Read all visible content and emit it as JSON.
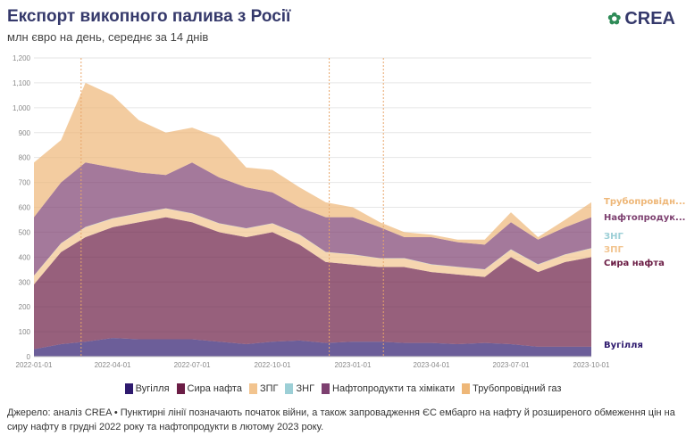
{
  "header": {
    "title": "Експорт викопного палива з Росії",
    "subtitle": "млн євро на день, середнє за 14 днів",
    "logo": "CREA"
  },
  "chart_data": {
    "type": "area",
    "stacked": true,
    "title": "Експорт викопного палива з Росії",
    "ylabel": "млн євро на день",
    "ylim": [
      0,
      1200
    ],
    "yticks": [
      0,
      100,
      200,
      300,
      400,
      500,
      600,
      700,
      800,
      900,
      1000,
      1100,
      1200
    ],
    "ytick_labels": [
      "0",
      "100",
      "200",
      "300",
      "400",
      "500",
      "600",
      "700",
      "800",
      "900",
      "1,000",
      "1,100",
      "1,200"
    ],
    "xticks": [
      "2022-01-01",
      "2022-04-01",
      "2022-07-01",
      "2022-10-01",
      "2023-01-01",
      "2023-04-01",
      "2023-07-01",
      "2023-10-01"
    ],
    "x": [
      "2022-01-01",
      "2022-02-01",
      "2022-03-01",
      "2022-04-01",
      "2022-05-01",
      "2022-06-01",
      "2022-07-01",
      "2022-08-01",
      "2022-09-01",
      "2022-10-01",
      "2022-11-01",
      "2022-12-01",
      "2023-01-01",
      "2023-02-01",
      "2023-03-01",
      "2023-04-01",
      "2023-05-01",
      "2023-06-01",
      "2023-07-01",
      "2023-08-01",
      "2023-09-01",
      "2023-10-01"
    ],
    "vlines": [
      "2022-02-24",
      "2022-12-05",
      "2023-02-05"
    ],
    "series": [
      {
        "name": "Вугілля",
        "label": "Вугілля",
        "color": "#2e1a6e",
        "values": [
          30,
          50,
          60,
          75,
          70,
          70,
          70,
          60,
          50,
          60,
          65,
          55,
          60,
          60,
          55,
          55,
          50,
          55,
          50,
          40,
          40,
          40
        ]
      },
      {
        "name": "Сира нафта",
        "label": "Сира нафта",
        "color": "#6b1d45",
        "values": [
          260,
          370,
          420,
          445,
          470,
          490,
          470,
          440,
          430,
          440,
          385,
          325,
          310,
          300,
          305,
          285,
          280,
          265,
          350,
          300,
          340,
          360
        ]
      },
      {
        "name": "ЗПГ",
        "label": "ЗПГ",
        "color": "#f2c48f",
        "values": [
          35,
          35,
          40,
          35,
          35,
          35,
          35,
          35,
          35,
          35,
          40,
          40,
          40,
          35,
          35,
          30,
          30,
          30,
          30,
          30,
          30,
          35
        ]
      },
      {
        "name": "ЗНГ",
        "label": "ЗНГ",
        "color": "#9ccfd6",
        "values": [
          1,
          1,
          1,
          1,
          1,
          1,
          1,
          1,
          1,
          1,
          1,
          1,
          1,
          1,
          1,
          1,
          1,
          1,
          1,
          1,
          1,
          1
        ]
      },
      {
        "name": "Нафтопродукти та хімікати",
        "label": "Нафтопродук...",
        "color": "#7d4070",
        "values": [
          234,
          244,
          259,
          204,
          164,
          134,
          204,
          184,
          164,
          124,
          109,
          139,
          149,
          124,
          84,
          109,
          99,
          99,
          109,
          99,
          109,
          124
        ]
      },
      {
        "name": "Трубопровідний газ",
        "label": "Трубопровідн...",
        "color": "#eeb778",
        "values": [
          220,
          170,
          320,
          290,
          210,
          170,
          140,
          160,
          80,
          90,
          80,
          60,
          40,
          20,
          20,
          10,
          10,
          20,
          40,
          10,
          30,
          60
        ]
      }
    ],
    "legend_position": "bottom"
  },
  "source": "Джерело: аналіз CREA • Пунктирні лінії позначають початок війни, а також запровадження ЄС ембарго на нафту й розширеного обмеження цін на сиру нафту в грудні 2022 року та нафтопродукти в лютому 2023 року."
}
